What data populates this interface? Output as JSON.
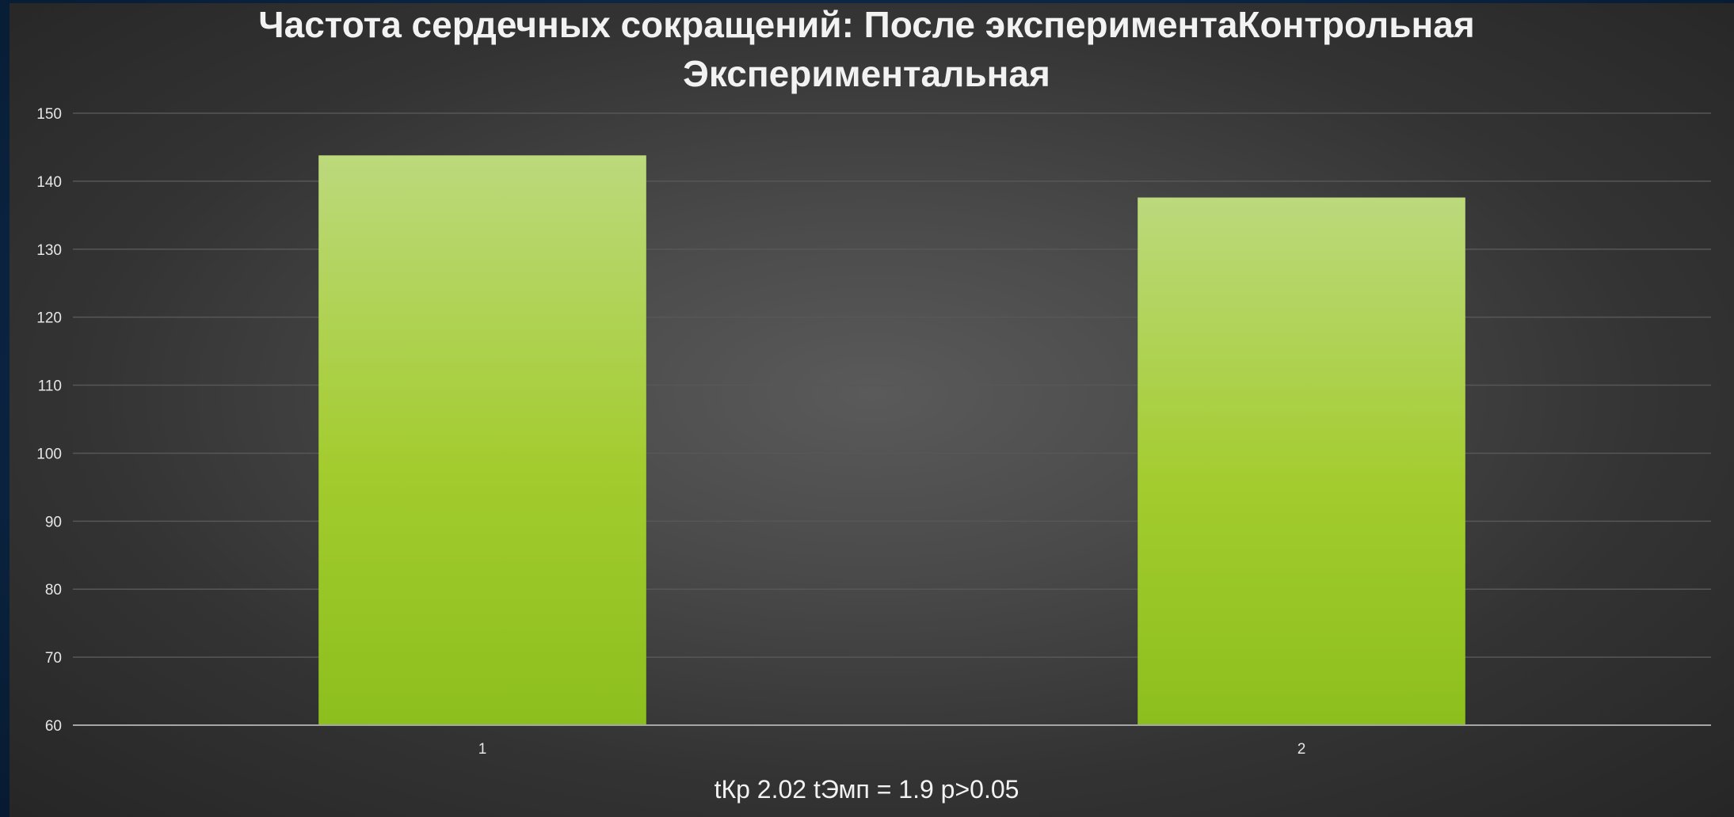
{
  "chart_data": {
    "type": "bar",
    "title": "Частота сердечных сокращений: После экспериментаКонтрольная Экспериментальная",
    "title_lines": [
      "Частота сердечных сокращений: После экспериментаКонтрольная",
      "Экспериментальная"
    ],
    "categories": [
      "1",
      "2"
    ],
    "values": [
      143.8,
      137.6
    ],
    "xlabel": "tКр 2.02 tЭмп = 1.9 p>0.05",
    "ylabel": "",
    "ylim": [
      60,
      150
    ],
    "yticks": [
      60,
      70,
      80,
      90,
      100,
      110,
      120,
      130,
      140,
      150
    ],
    "grid": true,
    "legend": "none",
    "colors": {
      "bar_top": "#bcd97c",
      "bar_bottom": "#8cbf1e",
      "gridline": "#575757",
      "axis": "#a6a6a6",
      "text": "#f2f2f2",
      "background_outer": "#0c2746",
      "panel_center": "#5a5a5a",
      "panel_edge": "#262626"
    }
  }
}
